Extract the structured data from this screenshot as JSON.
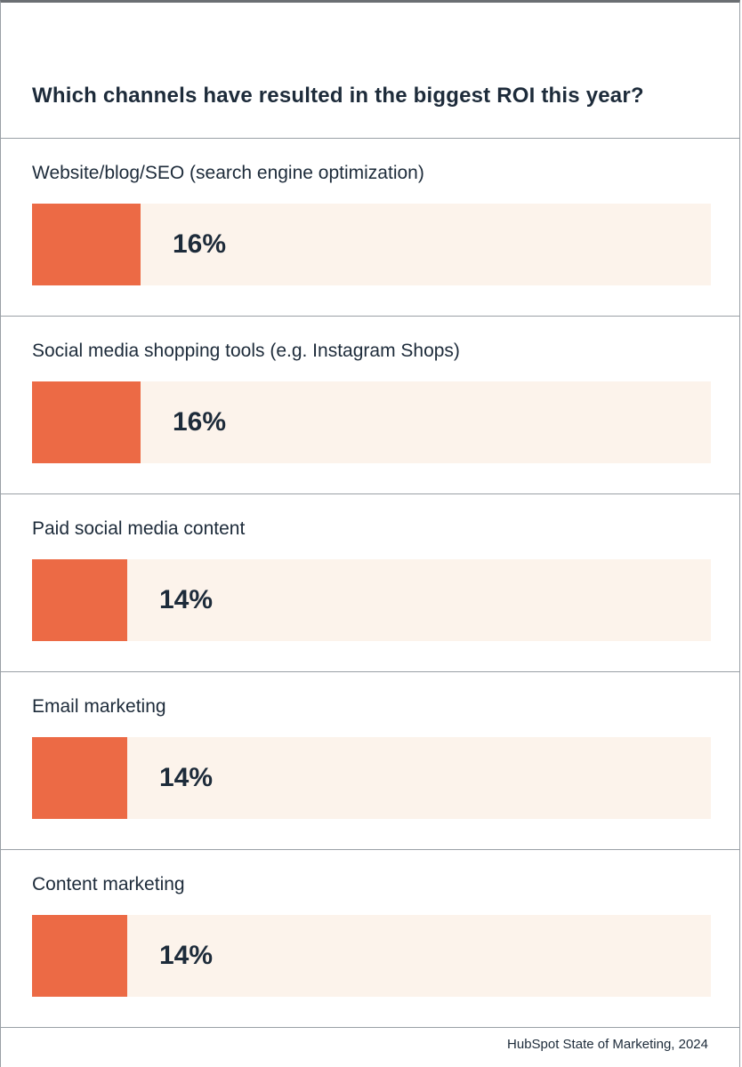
{
  "chart_data": {
    "type": "bar",
    "orientation": "horizontal",
    "title": "Which channels have resulted in the biggest ROI this year?",
    "categories": [
      "Website/blog/SEO (search engine optimization)",
      "Social media shopping tools (e.g. Instagram Shops)",
      "Paid social media content",
      "Email marketing",
      "Content marketing"
    ],
    "values": [
      16,
      16,
      14,
      14,
      14
    ],
    "value_labels": [
      "16%",
      "16%",
      "14%",
      "14%",
      "14%"
    ],
    "unit": "%",
    "xlim": [
      0,
      100
    ],
    "bar_color": "#ec6a45",
    "track_color": "#fcf3eb",
    "source": "HubSpot State of Marketing, 2024"
  }
}
